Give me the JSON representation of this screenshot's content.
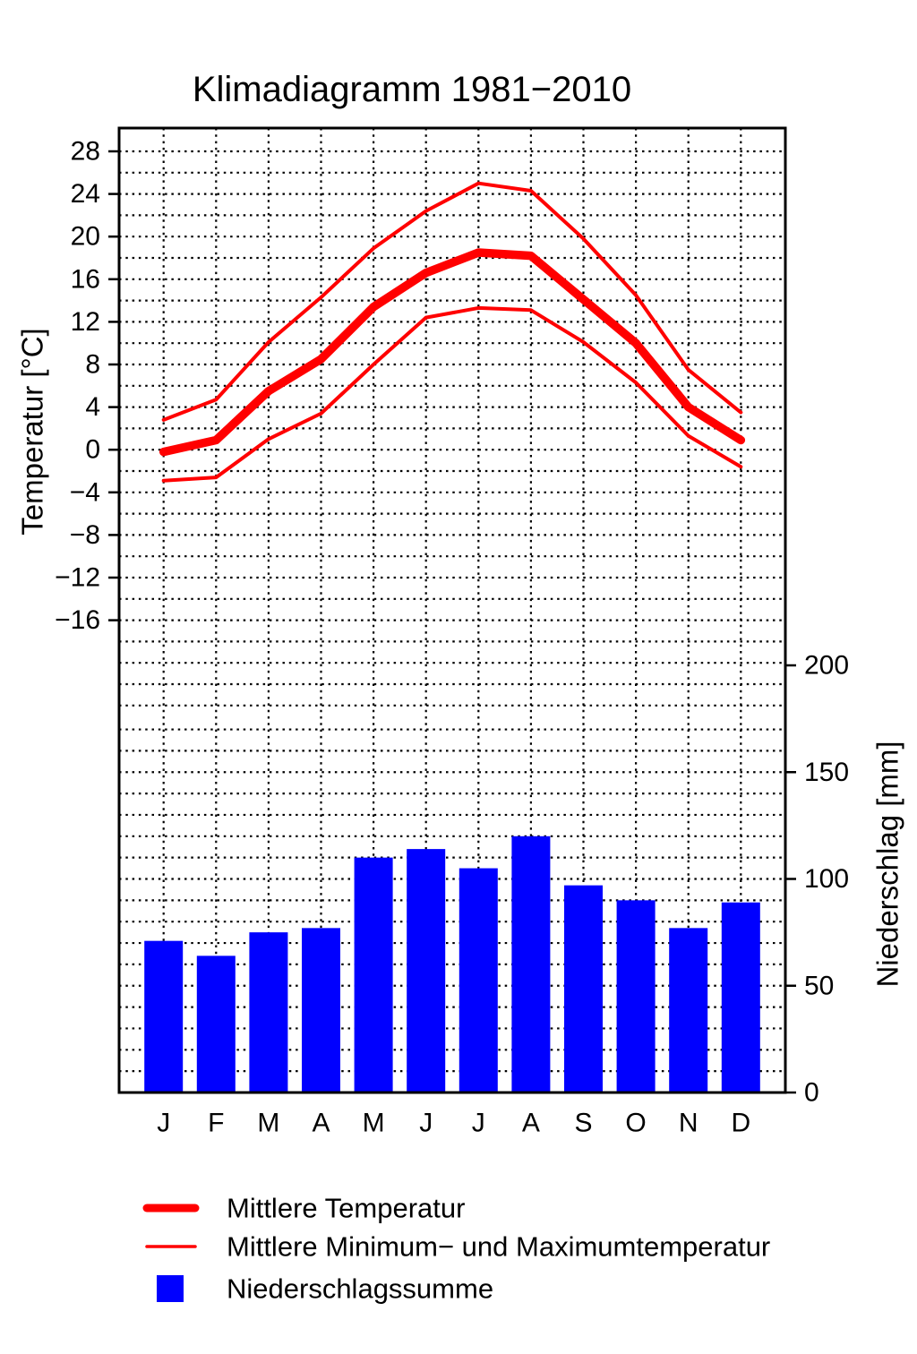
{
  "title": "Klimadiagramm 1981−2010",
  "chart_data": {
    "type": "line+bar",
    "description": "Climate diagram: monthly mean/min/max temperature lines and precipitation bars",
    "categories": [
      "J",
      "F",
      "M",
      "A",
      "M",
      "J",
      "J",
      "A",
      "S",
      "O",
      "N",
      "D"
    ],
    "series": [
      {
        "name": "Mittlere Temperatur",
        "type": "line",
        "axis": "temperature",
        "style": "thick",
        "color": "#ff0000",
        "values": [
          -0.2,
          0.9,
          5.5,
          8.5,
          13.4,
          16.6,
          18.5,
          18.2,
          14.1,
          10.0,
          4.0,
          0.9
        ]
      },
      {
        "name": "Mittlere Maximumtemperatur",
        "type": "line",
        "axis": "temperature",
        "style": "thin",
        "color": "#ff0000",
        "values": [
          2.8,
          4.7,
          10.1,
          14.3,
          18.9,
          22.4,
          25.0,
          24.3,
          19.8,
          14.5,
          7.5,
          3.5
        ]
      },
      {
        "name": "Mittlere Minimumtemperatur",
        "type": "line",
        "axis": "temperature",
        "style": "thin",
        "color": "#ff0000",
        "values": [
          -2.9,
          -2.6,
          1.0,
          3.4,
          8.0,
          12.4,
          13.3,
          13.1,
          10.1,
          6.3,
          1.3,
          -1.6
        ]
      },
      {
        "name": "Niederschlagssumme",
        "type": "bar",
        "axis": "precipitation",
        "color": "#0000ff",
        "values": [
          71,
          64,
          75,
          77,
          110,
          114,
          105,
          120,
          97,
          90,
          77,
          89
        ]
      }
    ],
    "axes": {
      "temperature": {
        "label": "Temperatur [°C]",
        "side": "left",
        "unit": "°C",
        "tick_values": [
          28,
          24,
          20,
          16,
          12,
          8,
          4,
          0,
          -4,
          -8,
          -12,
          -16
        ],
        "minor_step": 2
      },
      "precipitation": {
        "label": "Niederschlag [mm]",
        "side": "right",
        "unit": "mm",
        "tick_values": [
          0,
          50,
          100,
          150,
          200
        ],
        "minor_step": 10
      }
    },
    "grid": "dotted",
    "legend_position": "bottom-left",
    "legend": [
      {
        "label": "Mittlere Temperatur",
        "swatch": "thick-red-line"
      },
      {
        "label": "Mittlere Minimum− und Maximumtemperatur",
        "swatch": "thin-red-line"
      },
      {
        "label": "Niederschlagssumme",
        "swatch": "blue-square"
      }
    ]
  },
  "colors": {
    "temperature_line": "#ff0000",
    "precipitation_bar": "#0000ff",
    "grid": "#000000",
    "text": "#000000",
    "background": "#ffffff"
  }
}
